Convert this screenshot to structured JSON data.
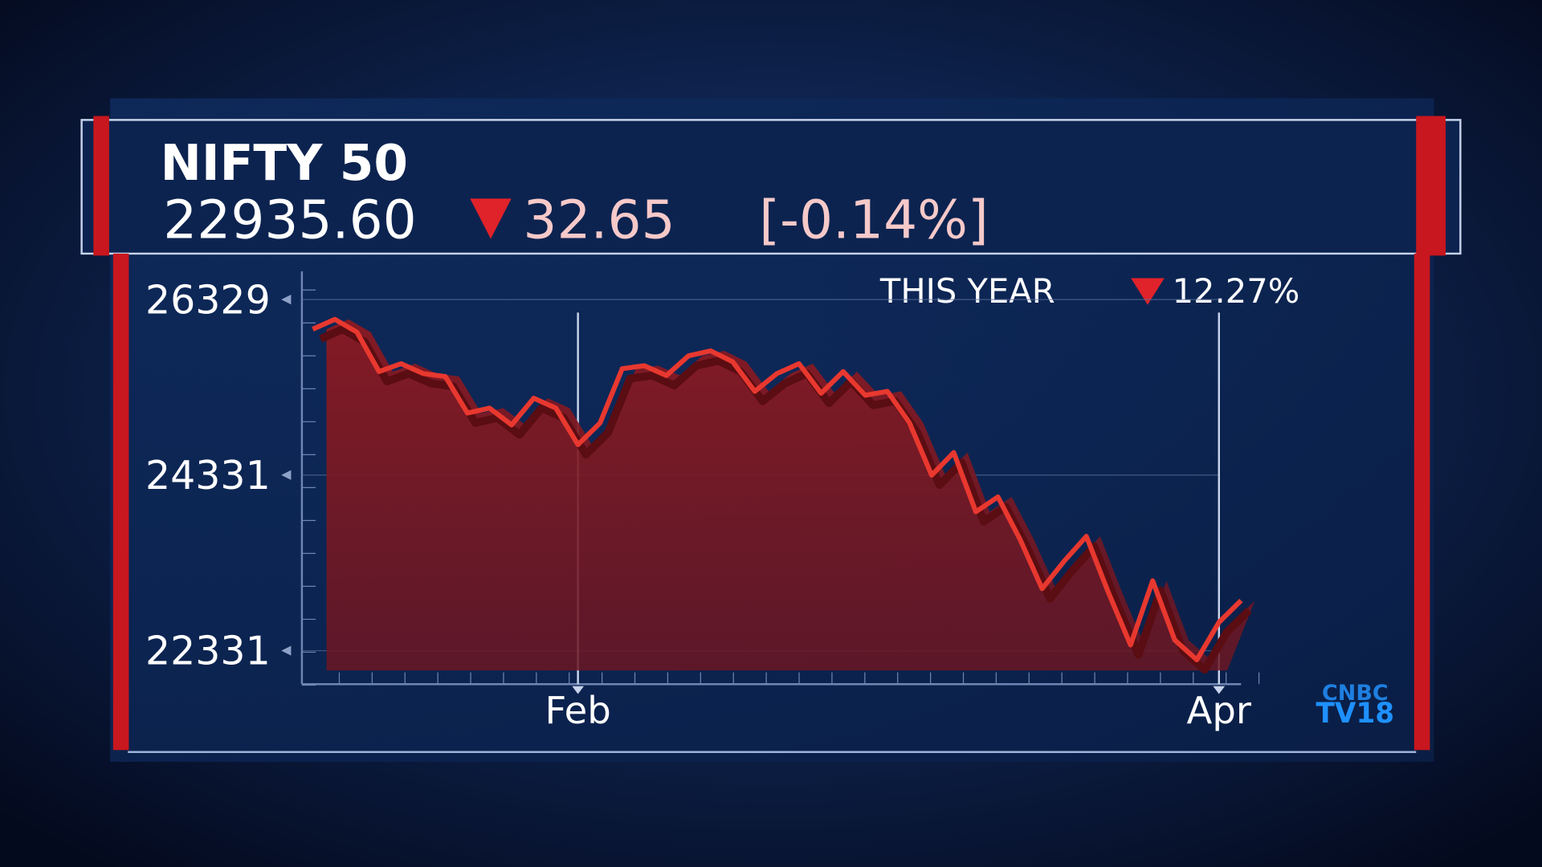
{
  "chart_data": {
    "type": "area",
    "title": "NIFTY 50",
    "price": "22935.60",
    "change": "32.65",
    "change_pct": "[-0.14%]",
    "period_label": "THIS YEAR",
    "period_change": "12.27%",
    "categories": [
      null,
      null,
      null,
      null,
      null,
      null,
      null,
      null,
      null,
      null,
      null,
      null,
      "Feb",
      null,
      null,
      null,
      null,
      null,
      null,
      null,
      null,
      null,
      null,
      null,
      null,
      null,
      null,
      null,
      null,
      null,
      null,
      null,
      null,
      null,
      null,
      null,
      null,
      null,
      null,
      null,
      null,
      "Apr",
      null
    ],
    "series": [
      {
        "color": "#e8382f",
        "values": [
          25992,
          26104,
          25958,
          25509,
          25599,
          25486,
          25453,
          25037,
          25093,
          24902,
          25206,
          25093,
          24677,
          24924,
          25542,
          25576,
          25464,
          25688,
          25745,
          25621,
          25284,
          25486,
          25599,
          25262,
          25509,
          25239,
          25284,
          24924,
          24329,
          24587,
          23913,
          24082,
          23599,
          23037,
          23352,
          23633,
          22992,
          22396,
          23127,
          22452,
          22227,
          22654,
          22902
        ]
      }
    ],
    "ylim": [
      21950,
      26550
    ],
    "yticks": [
      22331,
      24331,
      26329
    ]
  },
  "logo": {
    "top": "CNBC",
    "bottom": "TV18"
  }
}
